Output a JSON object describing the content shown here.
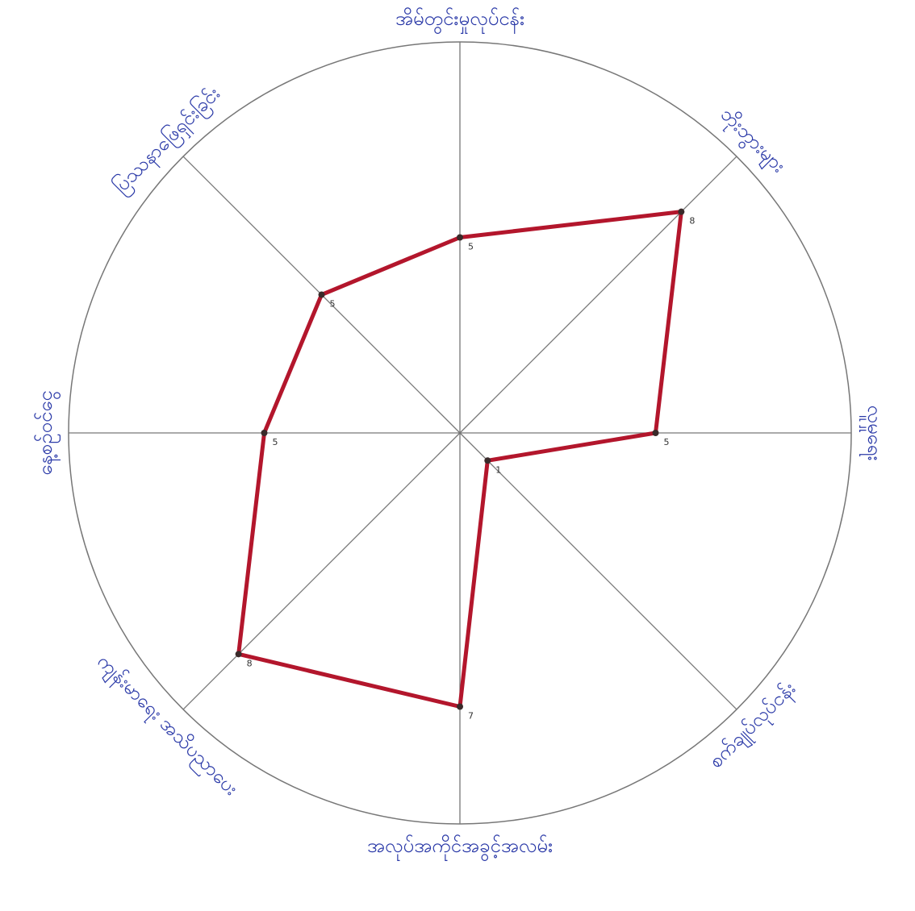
{
  "chart_data": {
    "type": "radar",
    "categories": [
      "အိမ်တွင်းမှုလုပ်ငန်း",
      "ဘိုးဘွားများ",
      "လူမှုရေး",
      "စက်ချုပ်လုပ်ငန်း",
      "အလုပ်အကိုင်အခွင့်အလမ်း",
      "ကျန်းမာရေး အသိပညာပေး",
      "နေ့စဉ်ဝင်ငွေ",
      "ပြဿနာဖြေရှင်းခြင်း"
    ],
    "values": [
      5,
      8,
      5,
      1,
      7,
      8,
      5,
      5
    ],
    "rlim": [
      0,
      10
    ],
    "color": "#b3162c"
  }
}
